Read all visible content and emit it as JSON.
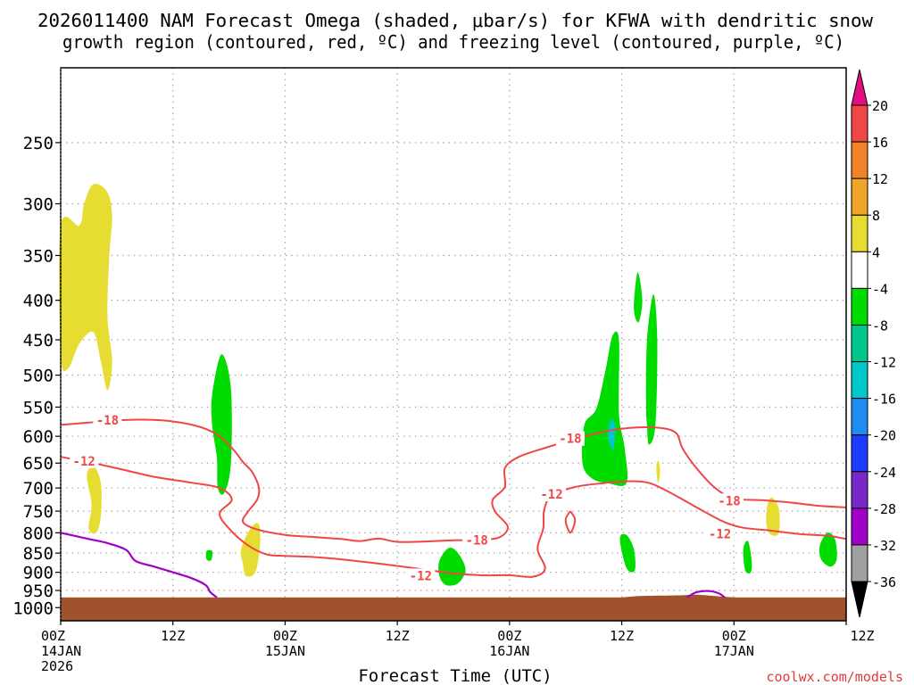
{
  "chart_data": {
    "type": "time-height",
    "title": "2026011400 NAM Forecast Omega (shaded, µbar/s) for KFWA with dendritic snow growth region (contoured, red, ºC) and freezing level (contoured, purple, ºC)",
    "title_lines": [
      "2026011400 NAM Forecast Omega (shaded, μbar/s) for KFWA with dendritic snow",
      "growth region (contoured, red, ºC) and freezing level (contoured, purple, ºC)"
    ],
    "xlabel": "Forecast Time (UTC)",
    "ylabel": "",
    "y_scale": "log",
    "ylim": [
      1040,
      200
    ],
    "xlim": [
      0,
      84
    ],
    "grid": true,
    "x_ticks": [
      {
        "hour": 0,
        "line1": "00Z",
        "line2": "14JAN",
        "line3": "2026"
      },
      {
        "hour": 12,
        "line1": "12Z",
        "line2": "",
        "line3": ""
      },
      {
        "hour": 24,
        "line1": "00Z",
        "line2": "15JAN",
        "line3": ""
      },
      {
        "hour": 36,
        "line1": "12Z",
        "line2": "",
        "line3": ""
      },
      {
        "hour": 48,
        "line1": "00Z",
        "line2": "16JAN",
        "line3": ""
      },
      {
        "hour": 60,
        "line1": "12Z",
        "line2": "",
        "line3": ""
      },
      {
        "hour": 72,
        "line1": "00Z",
        "line2": "17JAN",
        "line3": ""
      },
      {
        "hour": 84,
        "line1": "12Z",
        "line2": "",
        "line3": ""
      }
    ],
    "y_ticks": [
      250,
      300,
      350,
      400,
      450,
      500,
      550,
      600,
      650,
      700,
      750,
      800,
      850,
      900,
      950,
      1000
    ],
    "colorbar": {
      "labels": [
        "20",
        "16",
        "12",
        "8",
        "4",
        "-4",
        "-8",
        "-12",
        "-16",
        "-20",
        "-24",
        "-28",
        "-32",
        "-36"
      ],
      "segments": [
        {
          "from": 20,
          "to": 24,
          "color": "#e0117f"
        },
        {
          "from": 16,
          "to": 20,
          "color": "#f04646"
        },
        {
          "from": 12,
          "to": 16,
          "color": "#f08228"
        },
        {
          "from": 8,
          "to": 12,
          "color": "#f0a528"
        },
        {
          "from": 4,
          "to": 8,
          "color": "#e6dc32"
        },
        {
          "from": -4,
          "to": 4,
          "color": "#ffffff"
        },
        {
          "from": -8,
          "to": -4,
          "color": "#00dc00"
        },
        {
          "from": -12,
          "to": -8,
          "color": "#00c88c"
        },
        {
          "from": -16,
          "to": -12,
          "color": "#00c8c8"
        },
        {
          "from": -20,
          "to": -16,
          "color": "#1e8cf0"
        },
        {
          "from": -24,
          "to": -20,
          "color": "#1e3cff"
        },
        {
          "from": -28,
          "to": -24,
          "color": "#7828c8"
        },
        {
          "from": -32,
          "to": -28,
          "color": "#a000c8"
        },
        {
          "from": -36,
          "to": -32,
          "color": "#a0a0a0"
        },
        {
          "from": -40,
          "to": -36,
          "color": "#000000"
        }
      ]
    },
    "colors": {
      "dgz": "#f04646",
      "freezing": "#a000c8",
      "ground": "#a0522d",
      "grid": "#a0a0a0",
      "omega_pos": "#e6dc32",
      "omega_neg": "#00dc00",
      "omega_neg_strong": "#00c8c8"
    },
    "ground_top_pressure": 970,
    "dgz_contours": [
      {
        "level": "-18",
        "points": [
          [
            0,
            580
          ],
          [
            3,
            576
          ],
          [
            6,
            572
          ],
          [
            9,
            571
          ],
          [
            12,
            574
          ],
          [
            15,
            584
          ],
          [
            17,
            600
          ],
          [
            18.5,
            625
          ],
          [
            19.5,
            648
          ],
          [
            20.5,
            668
          ],
          [
            21.2,
            700
          ],
          [
            21,
            725
          ],
          [
            20,
            752
          ],
          [
            19.5,
            775
          ],
          [
            21,
            792
          ],
          [
            24,
            805
          ],
          [
            27,
            810
          ],
          [
            30,
            815
          ],
          [
            32,
            820
          ],
          [
            34,
            814
          ],
          [
            36,
            822
          ],
          [
            39,
            821
          ],
          [
            42,
            818
          ],
          [
            45,
            817
          ],
          [
            47,
            810
          ],
          [
            47.8,
            785
          ],
          [
            46.5,
            752
          ],
          [
            46.2,
            725
          ],
          [
            47.5,
            698
          ],
          [
            47.5,
            660
          ],
          [
            49,
            638
          ],
          [
            52,
            620
          ],
          [
            55,
            605
          ],
          [
            58,
            592
          ],
          [
            61,
            585
          ],
          [
            64,
            585
          ],
          [
            65.8,
            594
          ],
          [
            66.5,
            622
          ],
          [
            68,
            660
          ],
          [
            70,
            700
          ],
          [
            72,
            722
          ],
          [
            75,
            726
          ],
          [
            78,
            731
          ],
          [
            81,
            738
          ],
          [
            84,
            742
          ]
        ],
        "labels": [
          [
            5,
            572
          ],
          [
            44.5,
            818
          ],
          [
            54.5,
            604
          ],
          [
            71.5,
            727
          ]
        ]
      },
      {
        "level": "-12",
        "points": [
          [
            0,
            638
          ],
          [
            3,
            648
          ],
          [
            6,
            660
          ],
          [
            10,
            677
          ],
          [
            14,
            689
          ],
          [
            17,
            700
          ],
          [
            18.3,
            725
          ],
          [
            17,
            755
          ],
          [
            18,
            790
          ],
          [
            20,
            830
          ],
          [
            22,
            853
          ],
          [
            24,
            857
          ],
          [
            27,
            860
          ],
          [
            30,
            866
          ],
          [
            33,
            874
          ],
          [
            36,
            883
          ],
          [
            39,
            893
          ],
          [
            42,
            903
          ],
          [
            45,
            908
          ],
          [
            48,
            908
          ],
          [
            50.5,
            912
          ],
          [
            51.8,
            890
          ],
          [
            51,
            840
          ],
          [
            51.6,
            790
          ],
          [
            51.7,
            748
          ],
          [
            52.5,
            716
          ],
          [
            55,
            698
          ],
          [
            58,
            690
          ],
          [
            61,
            686
          ],
          [
            63,
            690
          ],
          [
            65,
            708
          ],
          [
            67,
            730
          ],
          [
            69,
            753
          ],
          [
            71,
            775
          ],
          [
            73,
            788
          ],
          [
            76,
            795
          ],
          [
            79,
            803
          ],
          [
            82,
            807
          ],
          [
            84,
            815
          ]
        ],
        "labels": [
          [
            2.5,
            646
          ],
          [
            38.5,
            909
          ],
          [
            52.5,
            713
          ],
          [
            70.5,
            803
          ]
        ]
      },
      {
        "level": "",
        "points": [
          [
            54.5,
            750
          ],
          [
            54,
            770
          ],
          [
            54.5,
            800
          ],
          [
            55,
            770
          ],
          [
            54.5,
            750
          ]
        ],
        "labels": []
      }
    ],
    "freezing_contour": {
      "points": [
        [
          0,
          800
        ],
        [
          3,
          815
        ],
        [
          5,
          825
        ],
        [
          7,
          842
        ],
        [
          8,
          870
        ],
        [
          10,
          885
        ],
        [
          12,
          900
        ],
        [
          14,
          916
        ],
        [
          15.5,
          935
        ],
        [
          16,
          955
        ],
        [
          16.7,
          970
        ]
      ],
      "points2": [
        [
          67,
          970
        ],
        [
          68,
          955
        ],
        [
          69.5,
          952
        ],
        [
          70.5,
          960
        ],
        [
          71,
          970
        ]
      ]
    },
    "omega_regions": [
      {
        "color": "#e6dc32",
        "value": 5,
        "points": [
          [
            0,
            320
          ],
          [
            2,
            320
          ],
          [
            2.5,
            300
          ],
          [
            3.5,
            283
          ],
          [
            5,
            290
          ],
          [
            5.5,
            312
          ],
          [
            5.2,
            350
          ],
          [
            5,
            420
          ],
          [
            5.5,
            480
          ],
          [
            5,
            523
          ],
          [
            4.3,
            480
          ],
          [
            3.5,
            440
          ],
          [
            2,
            455
          ],
          [
            0.8,
            490
          ],
          [
            0,
            470
          ]
        ]
      },
      {
        "color": "#e6dc32",
        "value": 5,
        "points": [
          [
            2.8,
            675
          ],
          [
            3.5,
            655
          ],
          [
            4.3,
            690
          ],
          [
            4.3,
            760
          ],
          [
            3.8,
            800
          ],
          [
            3.0,
            790
          ],
          [
            3.3,
            735
          ]
        ]
      },
      {
        "color": "#00dc00",
        "value": -6,
        "points": [
          [
            16.2,
            530
          ],
          [
            17.2,
            470
          ],
          [
            18.2,
            520
          ],
          [
            18.2,
            650
          ],
          [
            17.5,
            710
          ],
          [
            16.8,
            700
          ],
          [
            16.7,
            640
          ],
          [
            16.2,
            580
          ]
        ]
      },
      {
        "color": "#e6dc32",
        "value": 5,
        "points": [
          [
            19.3,
            840
          ],
          [
            20.3,
            790
          ],
          [
            21.2,
            780
          ],
          [
            21.3,
            835
          ],
          [
            20.8,
            900
          ],
          [
            19.8,
            910
          ],
          [
            19.5,
            880
          ]
        ]
      },
      {
        "color": "#00dc00",
        "value": -6,
        "points": [
          [
            15.6,
            845
          ],
          [
            16.2,
            845
          ],
          [
            16.1,
            868
          ],
          [
            15.6,
            866
          ]
        ]
      },
      {
        "color": "#00dc00",
        "value": -6,
        "points": [
          [
            40.5,
            870
          ],
          [
            41.5,
            837
          ],
          [
            42.5,
            850
          ],
          [
            43.3,
            893
          ],
          [
            42.5,
            930
          ],
          [
            41.2,
            935
          ],
          [
            40.5,
            910
          ]
        ]
      },
      {
        "color": "#00dc00",
        "value": -6,
        "points": [
          [
            55.8,
            650
          ],
          [
            56,
            580
          ],
          [
            57.3,
            552
          ],
          [
            58.3,
            490
          ],
          [
            59,
            445
          ],
          [
            59.7,
            450
          ],
          [
            59.7,
            560
          ],
          [
            60.3,
            620
          ],
          [
            60.5,
            690
          ],
          [
            58.5,
            690
          ],
          [
            56.8,
            680
          ]
        ]
      },
      {
        "color": "#00c8c8",
        "value": -12,
        "points": [
          [
            58.5,
            600
          ],
          [
            58.8,
            572
          ],
          [
            59.3,
            580
          ],
          [
            59.1,
            625
          ]
        ]
      },
      {
        "color": "#00dc00",
        "value": -6,
        "points": [
          [
            61.3,
            410
          ],
          [
            61.7,
            368
          ],
          [
            62.2,
            400
          ],
          [
            61.8,
            427
          ]
        ]
      },
      {
        "color": "#00dc00",
        "value": -6,
        "points": [
          [
            62.6,
            545
          ],
          [
            62.7,
            450
          ],
          [
            63.4,
            393
          ],
          [
            63.8,
            450
          ],
          [
            63.6,
            580
          ],
          [
            62.9,
            615
          ],
          [
            62.7,
            580
          ]
        ]
      },
      {
        "color": "#e6dc32",
        "value": 5,
        "points": [
          [
            63.7,
            660
          ],
          [
            63.9,
            645
          ],
          [
            64.1,
            665
          ],
          [
            63.9,
            690
          ]
        ]
      },
      {
        "color": "#00dc00",
        "value": -6,
        "points": [
          [
            59.8,
            815
          ],
          [
            60.5,
            805
          ],
          [
            61.3,
            840
          ],
          [
            61.4,
            895
          ],
          [
            60.5,
            888
          ]
        ]
      },
      {
        "color": "#e6dc32",
        "value": 5,
        "points": [
          [
            75.5,
            745
          ],
          [
            76,
            720
          ],
          [
            76.8,
            745
          ],
          [
            76.8,
            800
          ],
          [
            76,
            805
          ],
          [
            75.5,
            785
          ]
        ]
      },
      {
        "color": "#00dc00",
        "value": -6,
        "points": [
          [
            73,
            840
          ],
          [
            73.5,
            820
          ],
          [
            73.9,
            870
          ],
          [
            73.8,
            900
          ],
          [
            73.2,
            895
          ]
        ]
      },
      {
        "color": "#00dc00",
        "value": -6,
        "points": [
          [
            81.2,
            830
          ],
          [
            82,
            800
          ],
          [
            82.8,
            815
          ],
          [
            83,
            865
          ],
          [
            82.3,
            885
          ],
          [
            81.3,
            865
          ]
        ]
      }
    ]
  },
  "watermark": "coolwx.com/models"
}
